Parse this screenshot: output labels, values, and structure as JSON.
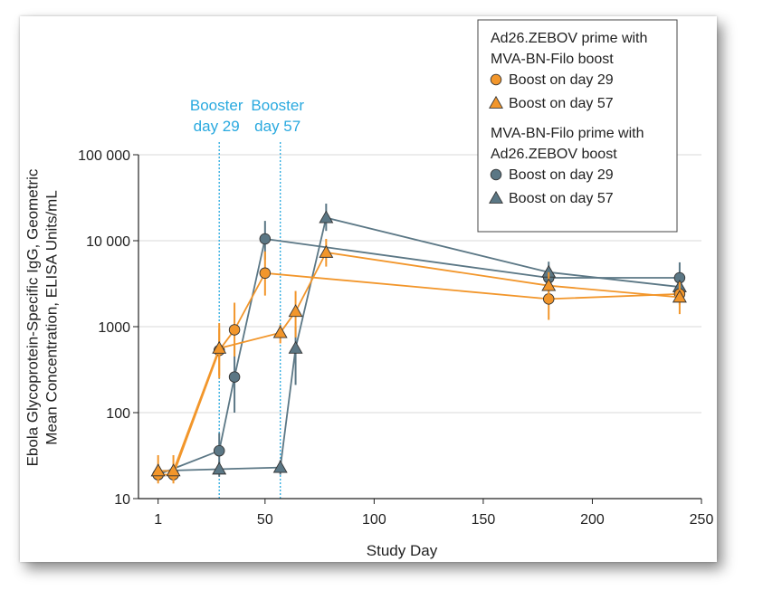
{
  "chart_data": {
    "type": "line",
    "xlabel": "Study Day",
    "ylabel": [
      "Ebola Glycoprotein-Specific IgG, Geometric",
      "Mean Concentration, ELISA Units/mL"
    ],
    "xlim": [
      -8,
      250
    ],
    "ylim": [
      10,
      100000
    ],
    "yscale": "log",
    "xticks": [
      1,
      50,
      100,
      150,
      200,
      250
    ],
    "yticks": [
      10,
      100,
      1000,
      10000,
      100000
    ],
    "ytick_labels": [
      "10",
      "100",
      "1000",
      "10 000",
      "100 000"
    ],
    "grid": "horizontal",
    "legend_position": "top-right",
    "legend_groups": [
      {
        "title": [
          "Ad26.ZEBOV prime with",
          "MVA-BN-Filo boost"
        ],
        "entries": [
          "Boost on day 29",
          "Boost on day 57"
        ]
      },
      {
        "title": [
          "MVA-BN-Filo prime with",
          "Ad26.ZEBOV boost"
        ],
        "entries": [
          "Boost on day 29",
          "Boost on day 57"
        ]
      }
    ],
    "annotations": [
      {
        "x": 29,
        "label": [
          "Booster",
          "day 29"
        ]
      },
      {
        "x": 57,
        "label": [
          "Booster",
          "day 57"
        ]
      }
    ],
    "colors": {
      "orange": "#f2962b",
      "slate": "#5b7785",
      "booster_line": "#29a9df",
      "grid": "#d9d9d9"
    },
    "series": [
      {
        "group": 0,
        "marker": "circle",
        "color": "orange",
        "x": [
          1,
          8,
          29,
          36,
          50,
          180,
          240
        ],
        "y": [
          19,
          19,
          530,
          920,
          4200,
          2100,
          2400
        ],
        "lo": [
          15,
          15,
          250,
          450,
          2300,
          1200,
          1800
        ],
        "hi": [
          25,
          25,
          1100,
          1900,
          7500,
          3400,
          3300
        ]
      },
      {
        "group": 0,
        "marker": "triangle",
        "color": "orange",
        "x": [
          1,
          8,
          29,
          57,
          64,
          78,
          180,
          240
        ],
        "y": [
          21,
          21,
          560,
          850,
          1500,
          7300,
          3000,
          2200
        ],
        "lo": [
          16,
          16,
          270,
          640,
          750,
          5000,
          2100,
          1400
        ],
        "hi": [
          32,
          32,
          950,
          1050,
          2600,
          10500,
          4300,
          3100
        ]
      },
      {
        "group": 1,
        "marker": "circle",
        "color": "slate",
        "x": [
          1,
          29,
          36,
          50,
          180,
          240
        ],
        "y": [
          19,
          36,
          260,
          10500,
          3700,
          3700
        ],
        "lo": [
          16,
          20,
          100,
          6000,
          2800,
          2400
        ],
        "hi": [
          23,
          58,
          600,
          17000,
          5000,
          5600
        ]
      },
      {
        "group": 1,
        "marker": "triangle",
        "color": "slate",
        "x": [
          1,
          29,
          57,
          64,
          78,
          180,
          240
        ],
        "y": [
          21,
          22,
          23,
          560,
          18500,
          4300,
          2900
        ],
        "lo": [
          18,
          18,
          19,
          210,
          13000,
          3200,
          2100
        ],
        "hi": [
          25,
          27,
          28,
          1000,
          27000,
          5700,
          4000
        ]
      }
    ]
  }
}
